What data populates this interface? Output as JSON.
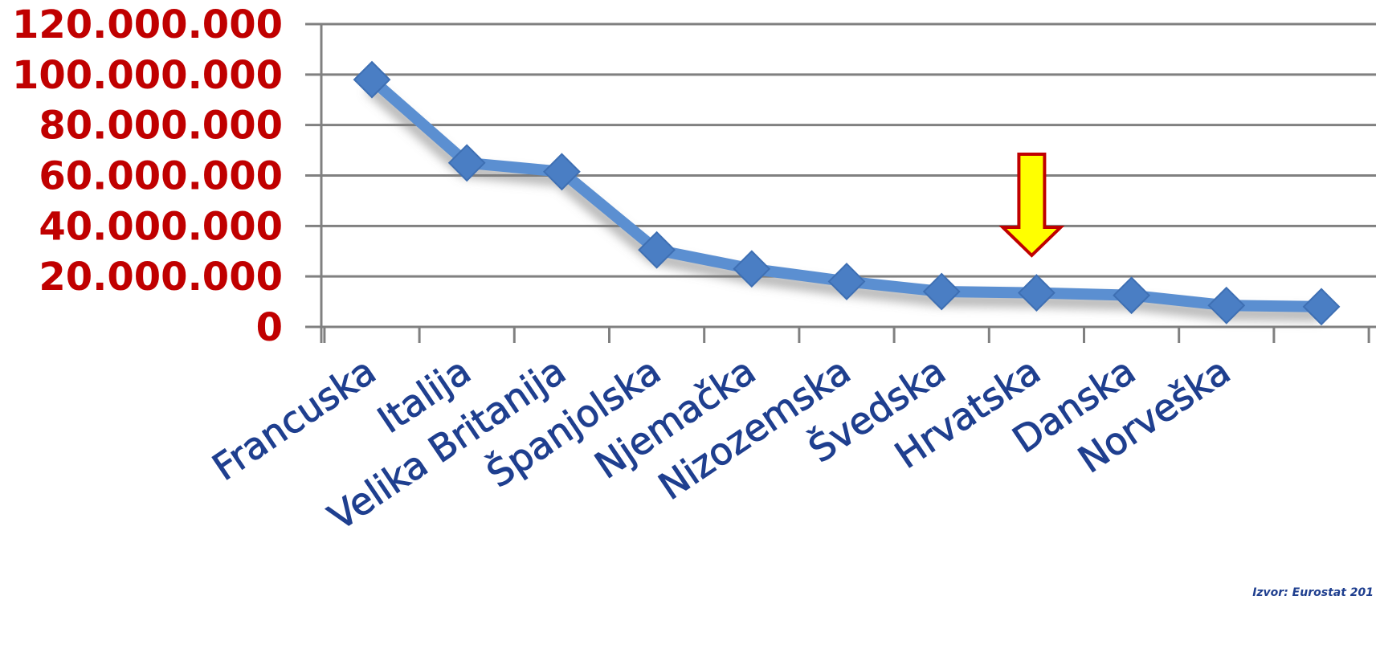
{
  "chart_data": {
    "type": "line",
    "categories": [
      "Francuska",
      "Italija",
      "Velika Britanija",
      "Španjolska",
      "Njemačka",
      "Nizozemska",
      "Švedska",
      "Hrvatska",
      "Danska",
      "Norveška",
      ""
    ],
    "series": [
      {
        "values": [
          98000000,
          65000000,
          61500000,
          30500000,
          23000000,
          18000000,
          14000000,
          13500000,
          12500000,
          8500000,
          8000000
        ]
      }
    ],
    "ylim": [
      0,
      120000000
    ],
    "yticks": [
      0,
      20000000,
      40000000,
      60000000,
      80000000,
      100000000,
      120000000
    ],
    "ytick_labels": [
      "0",
      "20.000.000",
      "40.000.000",
      "60.000.000",
      "80.000.000",
      "100.000.000",
      "120.000.000"
    ],
    "grid": true,
    "highlight_category": "Hrvatska",
    "colors": {
      "line": "#5b8fd1",
      "ytick_text": "#c00000",
      "xtick_text": "#1f3f8f",
      "grid": "#808080",
      "arrow_fill": "#ffff00",
      "arrow_stroke": "#c00000"
    },
    "source": "Izvor: Eurostat 201"
  }
}
